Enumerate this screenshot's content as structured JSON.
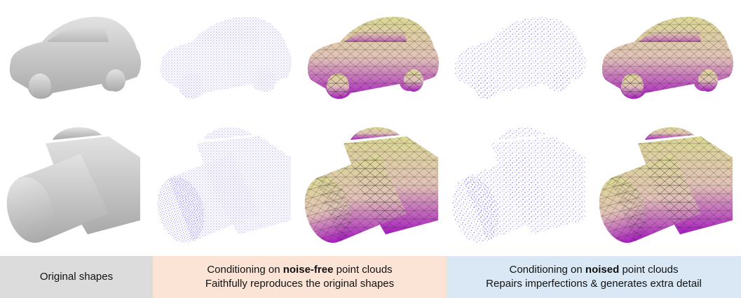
{
  "panels": [
    {
      "lines": [
        [
          "Original shapes"
        ]
      ]
    },
    {
      "lines": [
        [
          "Conditioning on",
          "noise-free",
          "point clouds"
        ],
        [
          "Faithfully reproduces the original shapes"
        ]
      ]
    },
    {
      "lines": [
        [
          "Conditioning on",
          "noised",
          "point clouds"
        ],
        [
          "Repairs imperfections & generates extra detail"
        ]
      ]
    }
  ]
}
